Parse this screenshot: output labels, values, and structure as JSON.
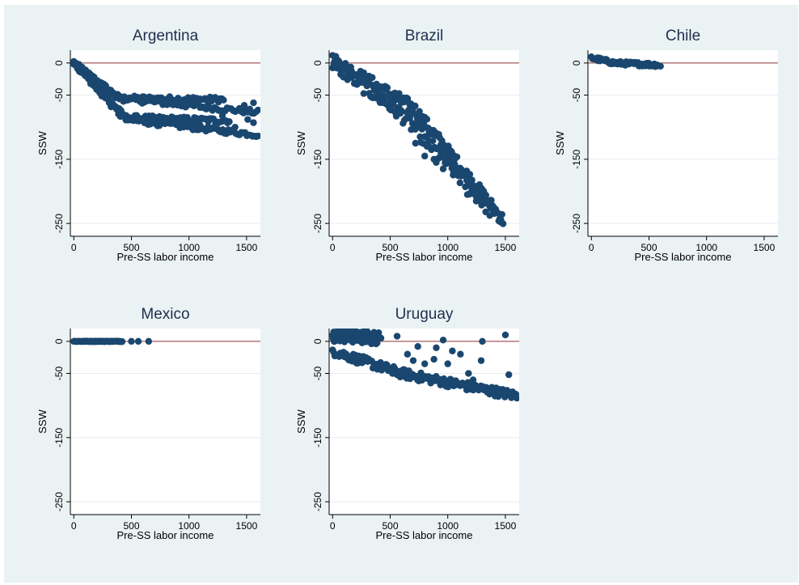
{
  "figure": {
    "background": "#eaf2f3",
    "plot_background": "#ffffff",
    "marker_color": "#1a476f",
    "reference_line_color": "#90353b"
  },
  "chart_data": [
    {
      "type": "scatter",
      "title": "Argentina",
      "xlabel": "Pre-SS labor income",
      "ylabel": "SSW",
      "xlim": [
        -30,
        1620
      ],
      "ylim": [
        -270,
        20
      ],
      "xticks": [
        0,
        500,
        1000,
        1500
      ],
      "yticks": [
        0,
        -50,
        -150,
        -250
      ],
      "reference_line_y": 0,
      "bands": [
        {
          "x_start": 0,
          "y_start": 0,
          "bend_x": 400,
          "bend_y": -55,
          "x_end": 1300,
          "y_end": -57,
          "n": 90,
          "spread": 4
        },
        {
          "x_start": 0,
          "y_start": 0,
          "bend_x": 380,
          "bend_y": -55,
          "x_end": 1600,
          "y_end": -77,
          "n": 90,
          "spread": 4
        },
        {
          "x_start": 0,
          "y_start": 0,
          "bend_x": 450,
          "bend_y": -85,
          "x_end": 1350,
          "y_end": -90,
          "n": 90,
          "spread": 4
        },
        {
          "x_start": 0,
          "y_start": 0,
          "bend_x": 440,
          "bend_y": -88,
          "x_end": 1600,
          "y_end": -112,
          "n": 100,
          "spread": 4
        }
      ],
      "points": [
        [
          1510,
          -88
        ],
        [
          1560,
          -93
        ],
        [
          1290,
          -82
        ],
        [
          1130,
          -70
        ],
        [
          1480,
          -66
        ],
        [
          1560,
          -62
        ],
        [
          1400,
          -100
        ]
      ]
    },
    {
      "type": "scatter",
      "title": "Brazil",
      "xlabel": "Pre-SS labor income",
      "ylabel": "SSW",
      "xlim": [
        -30,
        1620
      ],
      "ylim": [
        -270,
        20
      ],
      "xticks": [
        0,
        500,
        1000,
        1500
      ],
      "yticks": [
        0,
        -50,
        -150,
        -250
      ],
      "reference_line_y": 0,
      "bands": [
        {
          "x_start": 0,
          "y_start": 5,
          "bend_x": 700,
          "bend_y": -70,
          "x_end": 1480,
          "y_end": -245,
          "n": 160,
          "spread": 10
        },
        {
          "x_start": 0,
          "y_start": 0,
          "bend_x": 600,
          "bend_y": -80,
          "x_end": 1400,
          "y_end": -235,
          "n": 120,
          "spread": 12
        }
      ],
      "points": [
        [
          900,
          -155
        ],
        [
          820,
          -130
        ],
        [
          760,
          -115
        ],
        [
          880,
          -150
        ],
        [
          1170,
          -205
        ],
        [
          1370,
          -225
        ],
        [
          1250,
          -210
        ],
        [
          1460,
          -248
        ],
        [
          1050,
          -170
        ],
        [
          960,
          -165
        ],
        [
          800,
          -145
        ],
        [
          720,
          -125
        ]
      ]
    },
    {
      "type": "scatter",
      "title": "Chile",
      "xlabel": "Pre-SS labor income",
      "ylabel": "SSW",
      "xlim": [
        -30,
        1620
      ],
      "ylim": [
        -270,
        20
      ],
      "xticks": [
        0,
        500,
        1000,
        1500
      ],
      "yticks": [
        0,
        -50,
        -150,
        -250
      ],
      "reference_line_y": 0,
      "bands": [
        {
          "x_start": 0,
          "y_start": 8,
          "bend_x": 200,
          "bend_y": 0,
          "x_end": 580,
          "y_end": -3,
          "n": 70,
          "spread": 3
        }
      ],
      "points": [
        [
          600,
          -5
        ],
        [
          560,
          -4
        ]
      ]
    },
    {
      "type": "scatter",
      "title": "Mexico",
      "xlabel": "Pre-SS labor income",
      "ylabel": "SSW",
      "xlim": [
        -30,
        1620
      ],
      "ylim": [
        -270,
        20
      ],
      "xticks": [
        0,
        500,
        1000,
        1500
      ],
      "yticks": [
        0,
        -50,
        -150,
        -250
      ],
      "reference_line_y": 0,
      "bands": [
        {
          "x_start": 0,
          "y_start": 0,
          "bend_x": 200,
          "bend_y": 0,
          "x_end": 420,
          "y_end": 0,
          "n": 60,
          "spread": 0.5
        }
      ],
      "points": [
        [
          500,
          0
        ],
        [
          560,
          0
        ],
        [
          650,
          0
        ]
      ]
    },
    {
      "type": "scatter",
      "title": "Uruguay",
      "xlabel": "Pre-SS labor income",
      "ylabel": "SSW",
      "xlim": [
        -30,
        1620
      ],
      "ylim": [
        -270,
        20
      ],
      "xticks": [
        0,
        500,
        1000,
        1500
      ],
      "yticks": [
        0,
        -50,
        -150,
        -250
      ],
      "reference_line_y": 0,
      "bands": [
        {
          "x_start": 0,
          "y_start": 10,
          "bend_x": 400,
          "bend_y": 5,
          "x_end": 400,
          "y_end": 0,
          "n": 90,
          "spread": 10
        },
        {
          "x_start": 0,
          "y_start": -15,
          "bend_x": 600,
          "bend_y": -50,
          "x_end": 1600,
          "y_end": -85,
          "n": 170,
          "spread": 7
        }
      ],
      "points": [
        [
          520,
          -50
        ],
        [
          560,
          8
        ],
        [
          740,
          -8
        ],
        [
          900,
          -10
        ],
        [
          960,
          2
        ],
        [
          1040,
          -15
        ],
        [
          1110,
          -20
        ],
        [
          1180,
          -50
        ],
        [
          1290,
          -30
        ],
        [
          1300,
          0
        ],
        [
          1500,
          10
        ],
        [
          1530,
          -52
        ],
        [
          880,
          -28
        ],
        [
          1000,
          -35
        ],
        [
          1220,
          -60
        ],
        [
          420,
          5
        ],
        [
          650,
          -20
        ],
        [
          700,
          -30
        ],
        [
          800,
          -35
        ]
      ]
    }
  ]
}
